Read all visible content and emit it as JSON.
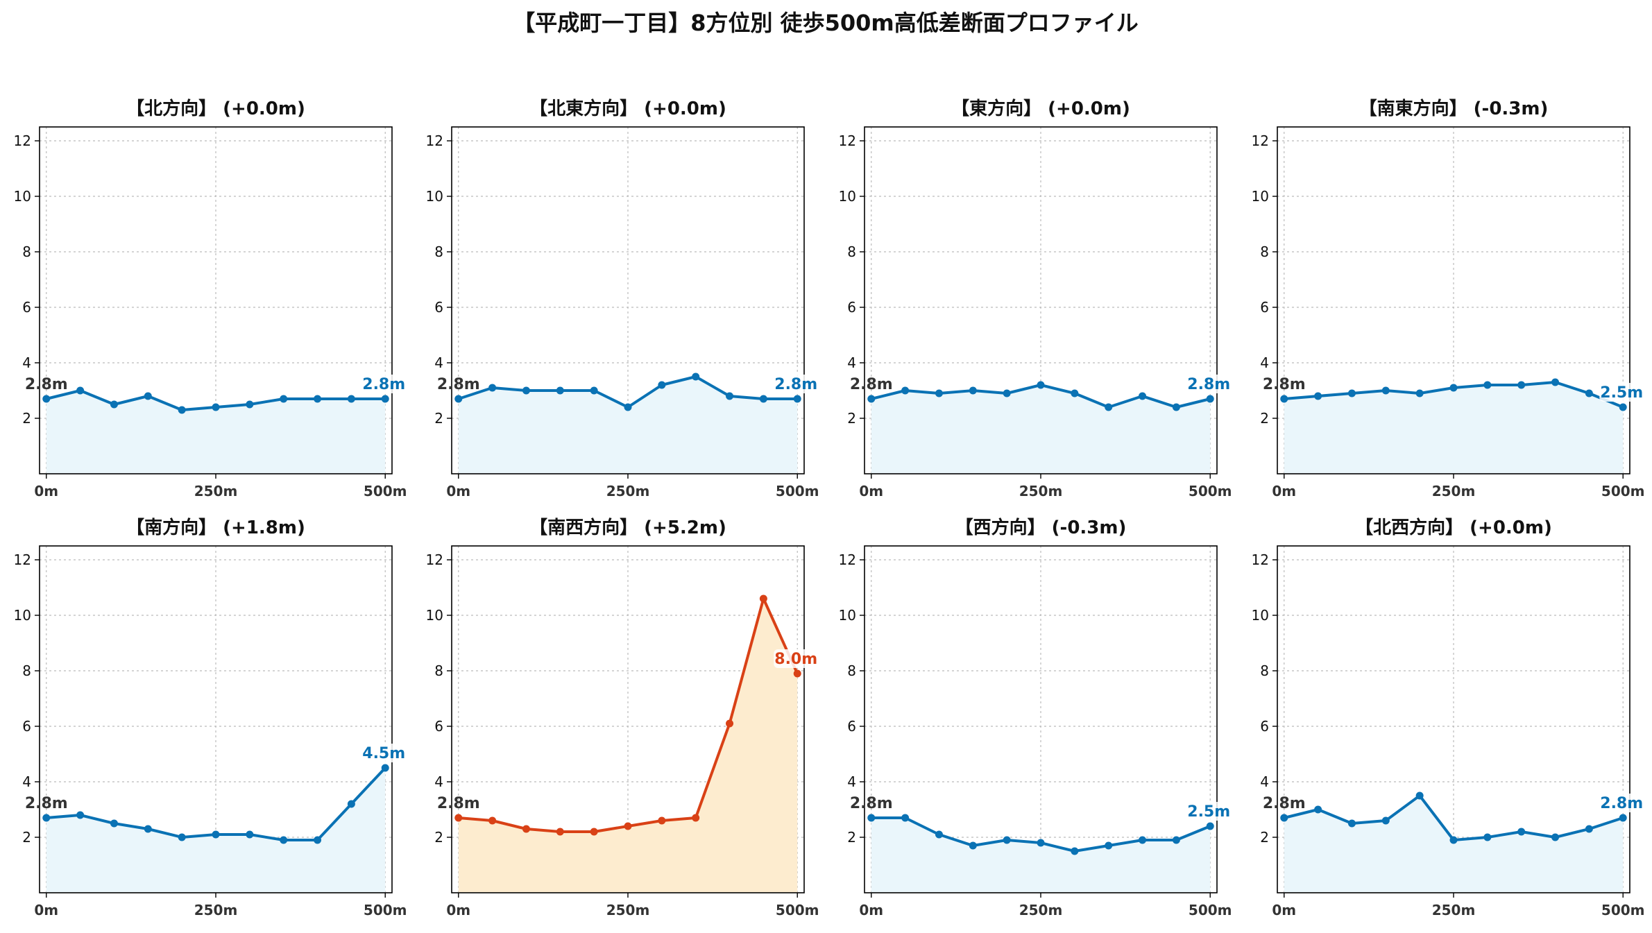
{
  "chart_data": {
    "title": "【平成町一丁目】8方位別 徒歩500m高低差断面プロファイル",
    "type": "line",
    "x": [
      0,
      50,
      100,
      150,
      200,
      250,
      300,
      350,
      400,
      450,
      500
    ],
    "xticks": [
      {
        "v": 0,
        "label": "0m"
      },
      {
        "v": 250,
        "label": "250m"
      },
      {
        "v": 500,
        "label": "500m"
      }
    ],
    "yticks": [
      2,
      4,
      6,
      8,
      10,
      12
    ],
    "xlim": [
      -10,
      510
    ],
    "ylim": [
      0,
      12.5
    ],
    "grid": true,
    "colors": {
      "normal_line": "#0a72b4",
      "normal_fill": "#eaf6fb",
      "highlight_line": "#d94116",
      "highlight_fill": "#fdeccf"
    },
    "panels": [
      {
        "title": "【北方向】 (+0.0m)",
        "highlight": false,
        "start_label": "2.8m",
        "end_label": "2.8m",
        "values": [
          2.7,
          3.0,
          2.5,
          2.8,
          2.3,
          2.4,
          2.5,
          2.7,
          2.7,
          2.7,
          2.7
        ]
      },
      {
        "title": "【北東方向】 (+0.0m)",
        "highlight": false,
        "start_label": "2.8m",
        "end_label": "2.8m",
        "values": [
          2.7,
          3.1,
          3.0,
          3.0,
          3.0,
          2.4,
          3.2,
          3.5,
          2.8,
          2.7,
          2.7
        ]
      },
      {
        "title": "【東方向】 (+0.0m)",
        "highlight": false,
        "start_label": "2.8m",
        "end_label": "2.8m",
        "values": [
          2.7,
          3.0,
          2.9,
          3.0,
          2.9,
          3.2,
          2.9,
          2.4,
          2.8,
          2.4,
          2.7
        ]
      },
      {
        "title": "【南東方向】 (-0.3m)",
        "highlight": false,
        "start_label": "2.8m",
        "end_label": "2.5m",
        "values": [
          2.7,
          2.8,
          2.9,
          3.0,
          2.9,
          3.1,
          3.2,
          3.2,
          3.3,
          2.9,
          2.4
        ]
      },
      {
        "title": "【南方向】 (+1.8m)",
        "highlight": false,
        "start_label": "2.8m",
        "end_label": "4.5m",
        "values": [
          2.7,
          2.8,
          2.5,
          2.3,
          2.0,
          2.1,
          2.1,
          1.9,
          1.9,
          3.2,
          4.5
        ]
      },
      {
        "title": "【南西方向】 (+5.2m)",
        "highlight": true,
        "start_label": "2.8m",
        "end_label": "8.0m",
        "values": [
          2.7,
          2.6,
          2.3,
          2.2,
          2.2,
          2.4,
          2.6,
          2.7,
          6.1,
          10.6,
          7.9
        ]
      },
      {
        "title": "【西方向】 (-0.3m)",
        "highlight": false,
        "start_label": "2.8m",
        "end_label": "2.5m",
        "values": [
          2.7,
          2.7,
          2.1,
          1.7,
          1.9,
          1.8,
          1.5,
          1.7,
          1.9,
          1.9,
          2.4
        ]
      },
      {
        "title": "【北西方向】 (+0.0m)",
        "highlight": false,
        "start_label": "2.8m",
        "end_label": "2.8m",
        "values": [
          2.7,
          3.0,
          2.5,
          2.6,
          3.5,
          1.9,
          2.0,
          2.2,
          2.0,
          2.3,
          2.7
        ]
      }
    ]
  }
}
